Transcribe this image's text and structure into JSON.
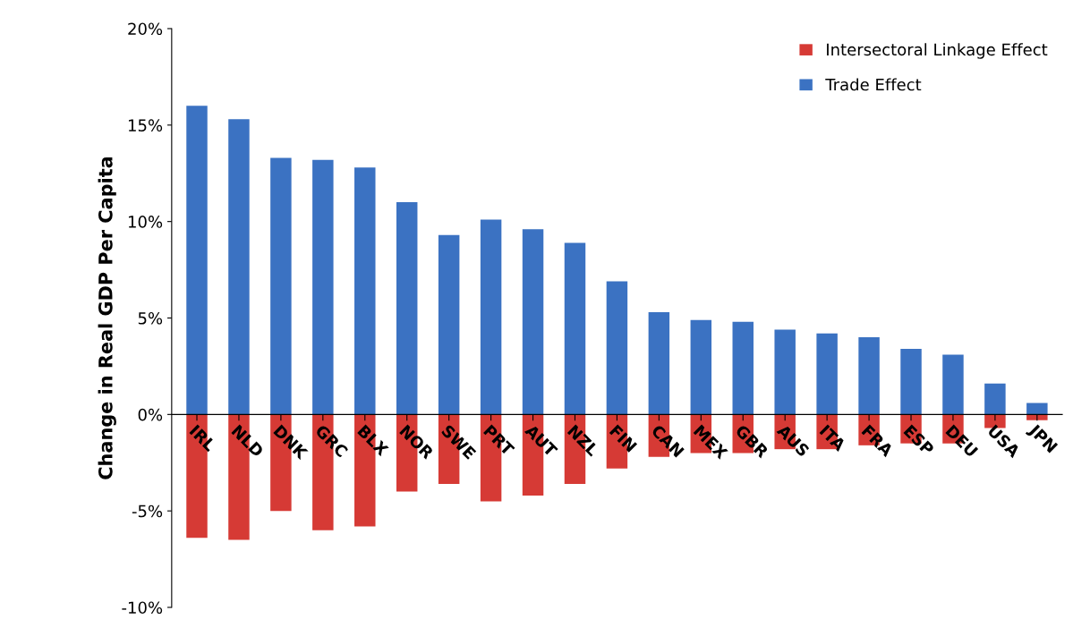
{
  "chart_data": {
    "type": "bar",
    "stacked": true,
    "ylabel": "Change in Real GDP Per Capita",
    "categories": [
      "IRL",
      "NLD",
      "DNK",
      "GRC",
      "BLX",
      "NOR",
      "SWE",
      "PRT",
      "AUT",
      "NZL",
      "FIN",
      "CAN",
      "MEX",
      "GBR",
      "AUS",
      "ITA",
      "FRA",
      "ESP",
      "DEU",
      "USA",
      "JPN"
    ],
    "series": [
      {
        "name": "Intersectoral Linkage Effect",
        "color": "#d63a35",
        "values": [
          -6.4,
          -6.5,
          -5.0,
          -6.0,
          -5.8,
          -4.0,
          -3.6,
          -4.5,
          -4.2,
          -3.6,
          -2.8,
          -2.2,
          -2.0,
          -2.0,
          -1.8,
          -1.8,
          -1.6,
          -1.5,
          -1.5,
          -0.7,
          -0.3
        ]
      },
      {
        "name": "Trade Effect",
        "color": "#3b72c2",
        "values": [
          16.0,
          15.3,
          13.3,
          13.2,
          12.8,
          11.0,
          9.3,
          10.1,
          9.6,
          8.9,
          6.9,
          5.3,
          4.9,
          4.8,
          4.4,
          4.2,
          4.0,
          3.4,
          3.1,
          1.6,
          0.6
        ]
      }
    ],
    "ylim": [
      -10,
      20
    ],
    "yticks": [
      {
        "value": -10,
        "label": "-10%"
      },
      {
        "value": -5,
        "label": "-5%"
      },
      {
        "value": 0,
        "label": "0%"
      },
      {
        "value": 5,
        "label": "5%"
      },
      {
        "value": 10,
        "label": "10%"
      },
      {
        "value": 15,
        "label": "15%"
      },
      {
        "value": 20,
        "label": "20%"
      }
    ],
    "grid": false,
    "legend": "top right"
  }
}
